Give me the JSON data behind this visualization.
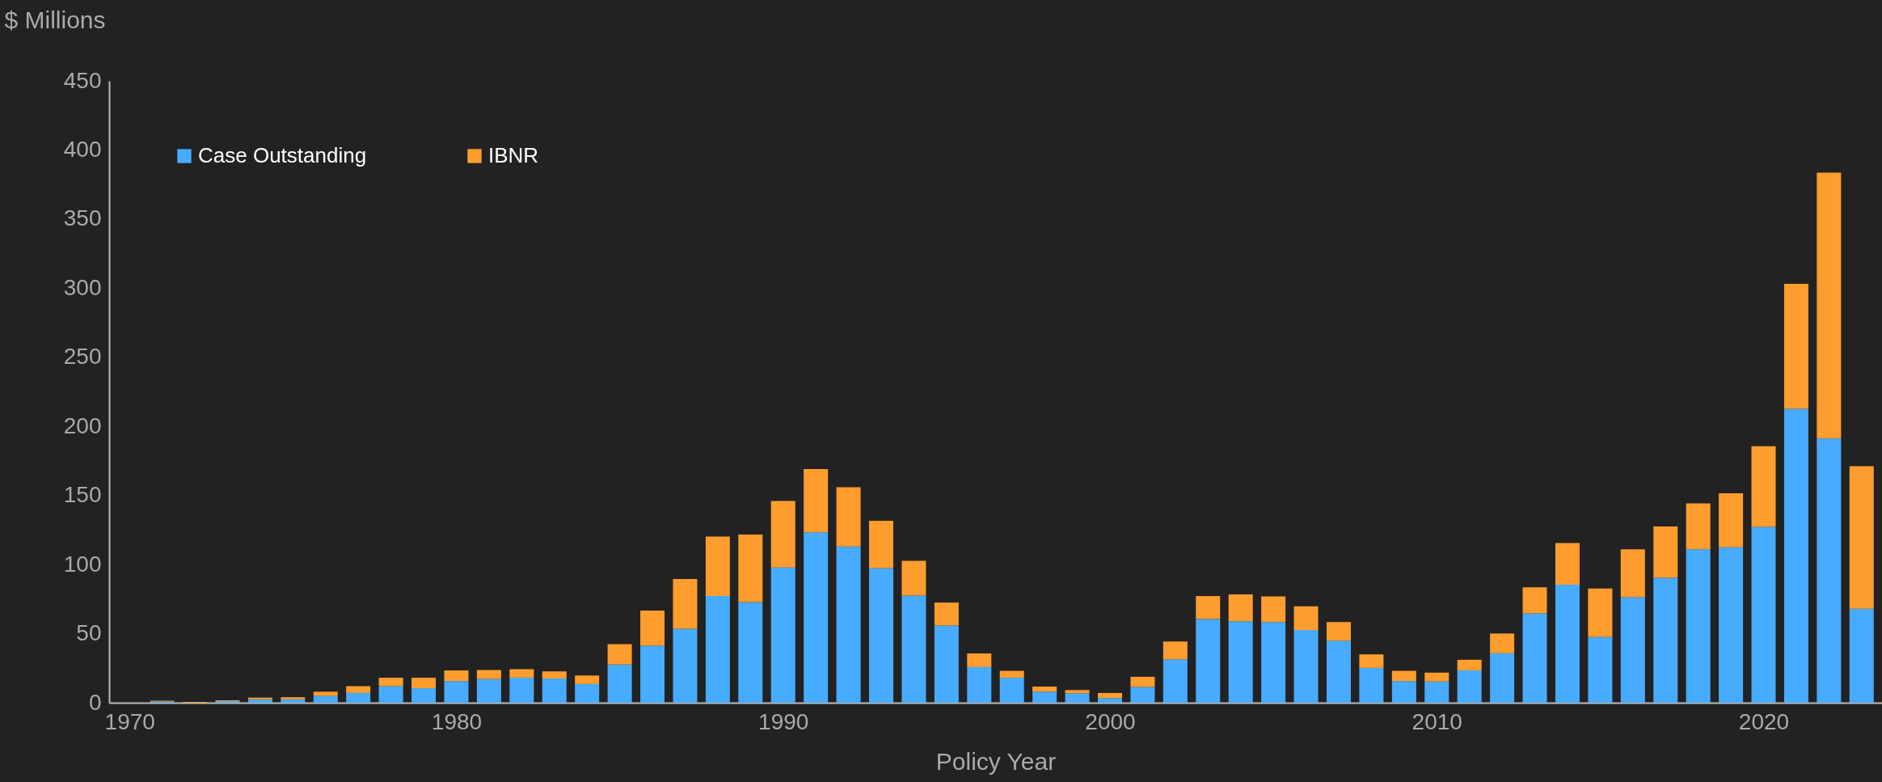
{
  "chart_data": {
    "type": "bar",
    "stacked": true,
    "xlabel": "Policy Year",
    "ylabel": "$ Millions",
    "x": [
      1970,
      1971,
      1972,
      1973,
      1974,
      1975,
      1976,
      1977,
      1978,
      1979,
      1980,
      1981,
      1982,
      1983,
      1984,
      1985,
      1986,
      1987,
      1988,
      1989,
      1990,
      1991,
      1992,
      1993,
      1994,
      1995,
      1996,
      1997,
      1998,
      1999,
      2000,
      2001,
      2002,
      2003,
      2004,
      2005,
      2006,
      2007,
      2008,
      2009,
      2010,
      2011,
      2012,
      2013,
      2014,
      2015,
      2016,
      2017,
      2018,
      2019,
      2020,
      2021,
      2022,
      2023
    ],
    "series": [
      {
        "name": "Case Outstanding",
        "color": "#47abff",
        "values": [
          0,
          1,
          null,
          1.2,
          2.5,
          2.5,
          4.9,
          7.1,
          12,
          10.5,
          15.7,
          17.2,
          18.1,
          17.5,
          13.5,
          27.7,
          41.2,
          53.5,
          77.2,
          72.9,
          97.8,
          123.3,
          113.1,
          97.4,
          77.5,
          55.9,
          25.8,
          18.1,
          8,
          6.8,
          3.4,
          11.4,
          31.4,
          60.6,
          59,
          58.4,
          52.6,
          44.9,
          25.2,
          15.7,
          15.4,
          23.4,
          35.8,
          64.6,
          85.5,
          47.6,
          76.3,
          90.4,
          111,
          112.5,
          127.3,
          212.7,
          191.2,
          68
        ]
      },
      {
        "name": "IBNR",
        "color": "#ff9d2e",
        "values": [
          0,
          0.5,
          0.6,
          0.6,
          1.2,
          1.5,
          3.1,
          4.9,
          6.1,
          7.6,
          7.7,
          6.5,
          6.2,
          5.2,
          6.2,
          14.7,
          25.5,
          36,
          43,
          48.8,
          48.2,
          45.8,
          42.8,
          34.2,
          25.2,
          16.6,
          9.9,
          5,
          3.7,
          2.4,
          3.7,
          7.4,
          12.9,
          16.6,
          19.4,
          18.5,
          17.2,
          13.5,
          9.8,
          7.4,
          6.4,
          7.7,
          14.3,
          19,
          30.1,
          35.1,
          34.7,
          37.2,
          33.2,
          39.1,
          58.4,
          90.4,
          192.4,
          103.2
        ]
      }
    ],
    "xlim": [
      1969.5,
      2023.5
    ],
    "xticks": [
      1970,
      1980,
      1990,
      2000,
      2010,
      2020
    ],
    "ylim": [
      0,
      450
    ],
    "yticks": [
      0,
      50,
      100,
      150,
      200,
      250,
      300,
      350,
      400,
      450
    ],
    "grid": false,
    "legend": "top left"
  }
}
